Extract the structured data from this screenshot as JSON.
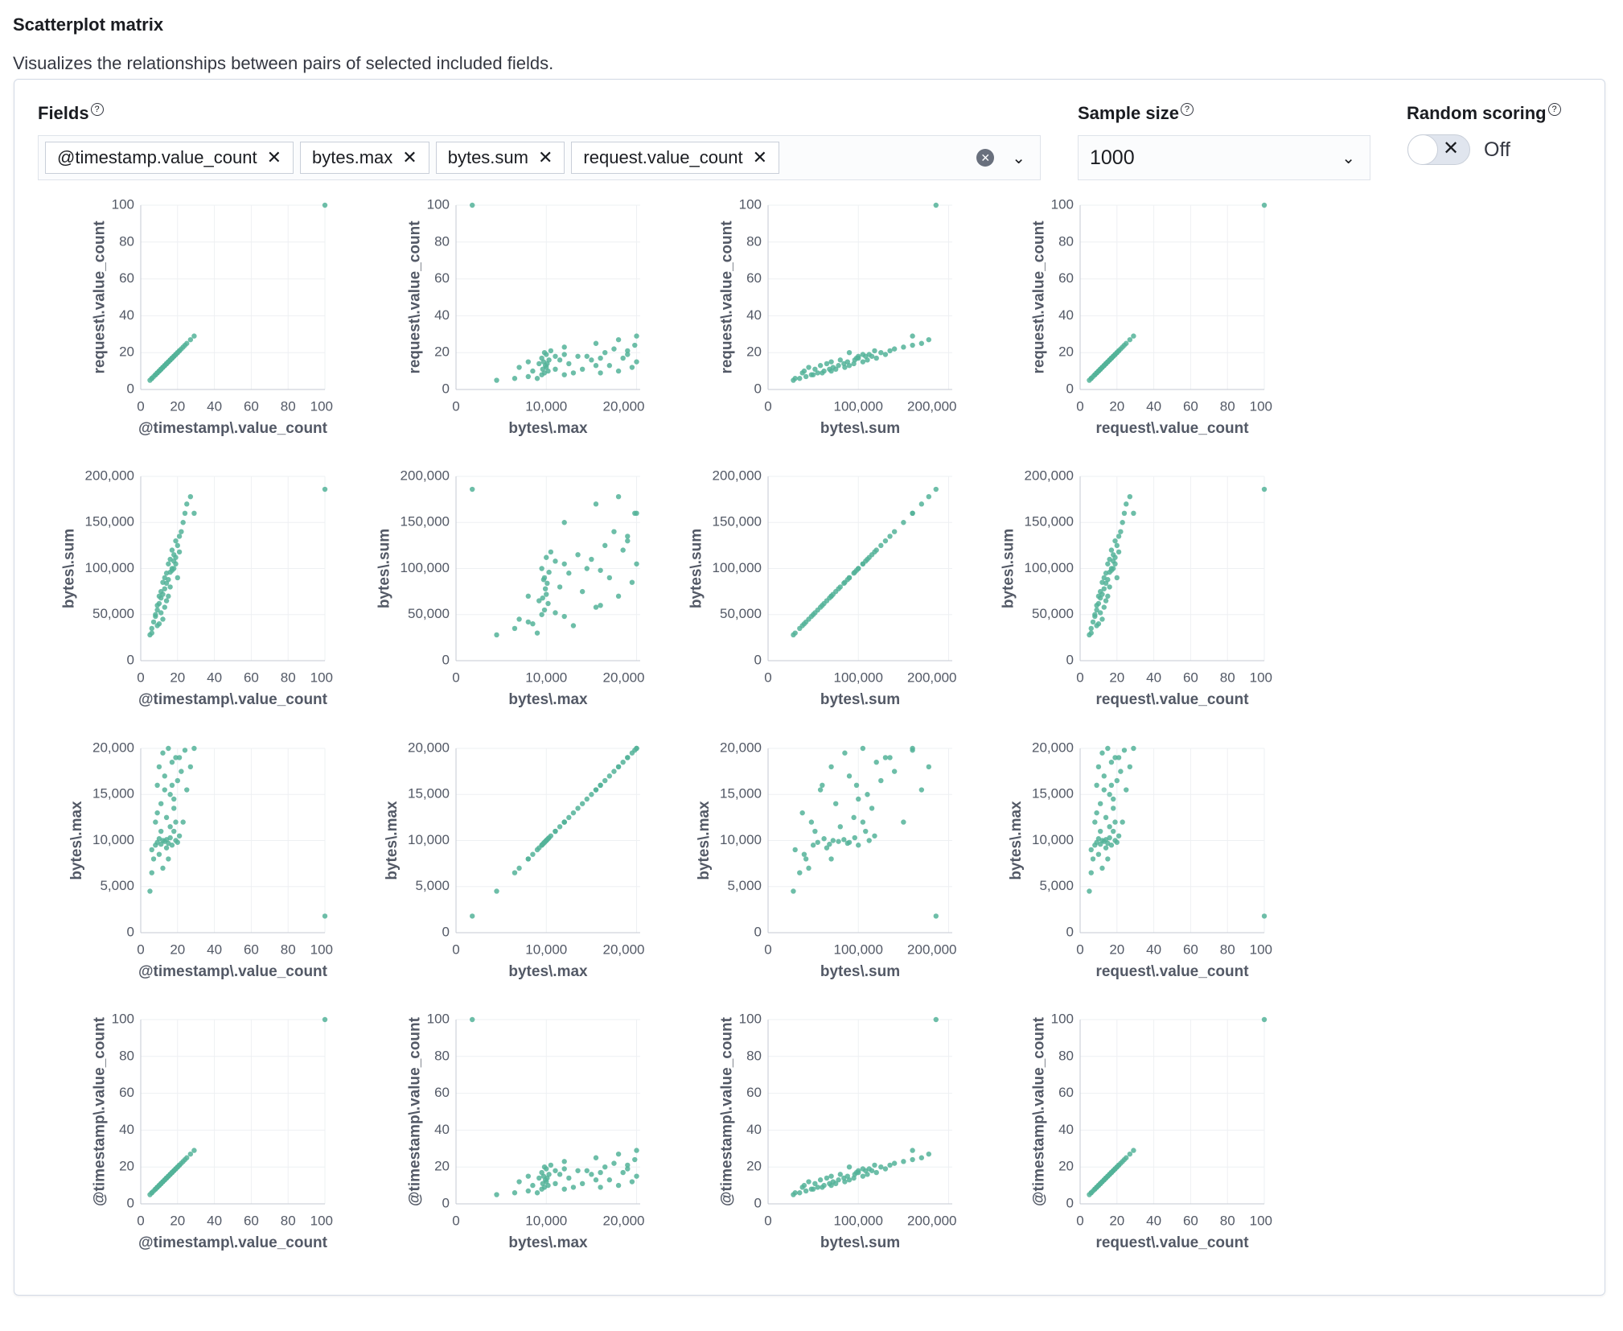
{
  "header": {
    "title": "Scatterplot matrix",
    "description": "Visualizes the relationships between pairs of selected included fields."
  },
  "controls": {
    "fields_label": "Fields",
    "selected_fields": [
      "@timestamp.value_count",
      "bytes.max",
      "bytes.sum",
      "request.value_count"
    ],
    "sample_size_label": "Sample size",
    "sample_size": "1000",
    "random_scoring_label": "Random scoring",
    "random_scoring": "Off"
  },
  "chart_data": {
    "type": "scatter",
    "fields": [
      "@timestamp\\.value_count",
      "bytes\\.max",
      "bytes\\.sum",
      "request\\.value_count"
    ],
    "columns": [
      0,
      1,
      2,
      3
    ],
    "rows": [
      3,
      2,
      1,
      0
    ],
    "axes": [
      {
        "xlim": [
          0,
          100
        ],
        "xticks": [
          0,
          20,
          40,
          60,
          80,
          100
        ],
        "ylim": [
          0,
          100
        ],
        "yticks": [
          0,
          20,
          40,
          60,
          80,
          100
        ]
      },
      {
        "xlim": [
          0,
          20400
        ],
        "xticks": [
          0,
          {
            "value": 10000,
            "label": "10,000"
          },
          {
            "value": 20000,
            "label": "20,000"
          }
        ],
        "ylim": [
          0,
          20000
        ],
        "yticks": [
          0,
          {
            "value": 5000,
            "label": "5,000"
          },
          {
            "value": 10000,
            "label": "10,000"
          },
          {
            "value": 15000,
            "label": "15,000"
          },
          {
            "value": 20000,
            "label": "20,000"
          }
        ]
      },
      {
        "xlim": [
          0,
          204000
        ],
        "xticks": [
          0,
          {
            "value": 100000,
            "label": "100,000"
          },
          {
            "value": 200000,
            "label": "200,000"
          }
        ],
        "ylim": [
          0,
          200000
        ],
        "yticks": [
          0,
          {
            "value": 50000,
            "label": "50,000"
          },
          {
            "value": 100000,
            "label": "100,000"
          },
          {
            "value": 150000,
            "label": "150,000"
          },
          {
            "value": 200000,
            "label": "200,000"
          }
        ]
      },
      {
        "xlim": [
          0,
          100
        ],
        "xticks": [
          0,
          20,
          40,
          60,
          80,
          100
        ],
        "ylim": [
          0,
          100
        ],
        "yticks": [
          0,
          20,
          40,
          60,
          80,
          100
        ]
      }
    ],
    "color": "#54b399",
    "grid": true,
    "records": [
      [
        5,
        4500,
        28000,
        5
      ],
      [
        6,
        6500,
        35000,
        6
      ],
      [
        7,
        8000,
        42000,
        7
      ],
      [
        8,
        9500,
        50000,
        8
      ],
      [
        8,
        12000,
        48000,
        8
      ],
      [
        9,
        9800,
        55000,
        9
      ],
      [
        9,
        16000,
        60000,
        9
      ],
      [
        10,
        10200,
        62000,
        10
      ],
      [
        10,
        18000,
        70000,
        10
      ],
      [
        11,
        9600,
        68000,
        11
      ],
      [
        11,
        14000,
        75000,
        11
      ],
      [
        12,
        10000,
        72000,
        12
      ],
      [
        12,
        19500,
        85000,
        12
      ],
      [
        13,
        9900,
        78000,
        13
      ],
      [
        13,
        17000,
        90000,
        13
      ],
      [
        14,
        10100,
        84000,
        14
      ],
      [
        14,
        12500,
        95000,
        14
      ],
      [
        15,
        9700,
        88000,
        15
      ],
      [
        15,
        20000,
        105000,
        15
      ],
      [
        16,
        10300,
        96000,
        16
      ],
      [
        16,
        15000,
        110000,
        16
      ],
      [
        17,
        9500,
        100000,
        17
      ],
      [
        17,
        18500,
        120000,
        17
      ],
      [
        18,
        11000,
        108000,
        18
      ],
      [
        18,
        13500,
        115000,
        18
      ],
      [
        19,
        10000,
        112000,
        19
      ],
      [
        19,
        19000,
        130000,
        19
      ],
      [
        20,
        16500,
        125000,
        20
      ],
      [
        21,
        10500,
        118000,
        21
      ],
      [
        22,
        17500,
        140000,
        22
      ],
      [
        23,
        12000,
        150000,
        23
      ],
      [
        24,
        19800,
        160000,
        24
      ],
      [
        25,
        15500,
        170000,
        25
      ],
      [
        27,
        18000,
        178000,
        27
      ],
      [
        29,
        20000,
        160000,
        29
      ],
      [
        12,
        7000,
        45000,
        12
      ],
      [
        10,
        8500,
        40000,
        10
      ],
      [
        14,
        9200,
        65000,
        14
      ],
      [
        16,
        11500,
        80000,
        16
      ],
      [
        18,
        14500,
        100000,
        18
      ],
      [
        20,
        9800,
        90000,
        20
      ],
      [
        13,
        15500,
        58000,
        13
      ],
      [
        11,
        11000,
        52000,
        11
      ],
      [
        9,
        13000,
        38000,
        9
      ],
      [
        15,
        8000,
        70000,
        15
      ],
      [
        17,
        16000,
        98000,
        17
      ],
      [
        19,
        12000,
        105000,
        19
      ],
      [
        21,
        19000,
        135000,
        21
      ],
      [
        6,
        9000,
        30000,
        6
      ],
      [
        100,
        1800,
        186000,
        100
      ]
    ]
  }
}
